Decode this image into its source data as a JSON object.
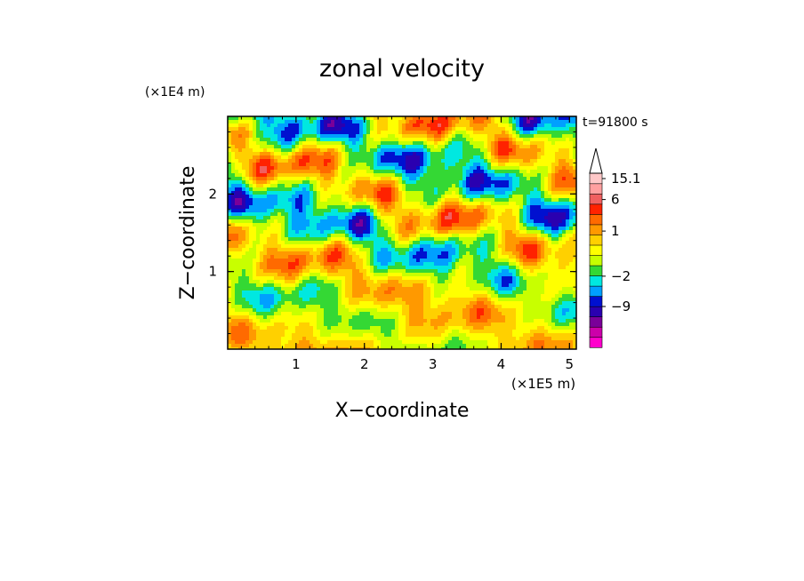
{
  "chart_data": {
    "type": "heatmap",
    "title": "zonal velocity",
    "time_label": "t=91800 s",
    "xlabel": "X−coordinate",
    "ylabel": "Z−coordinate",
    "x_unit_label": "(×1E5 m)",
    "y_unit_label": "(×1E4 m)",
    "xlim": [
      0,
      5.1
    ],
    "ylim": [
      0,
      3.0
    ],
    "x_ticks": [
      "1",
      "2",
      "3",
      "4",
      "5"
    ],
    "y_ticks": [
      "1",
      "2"
    ],
    "colorbar": {
      "labels": [
        {
          "text": "15.1",
          "level": 15.1
        },
        {
          "text": "6",
          "level": 6
        },
        {
          "text": "1",
          "level": 1
        },
        {
          "text": "−2",
          "level": -2
        },
        {
          "text": "−9",
          "level": -9
        }
      ],
      "colors": [
        "#ff00cc",
        "#cc00aa",
        "#7a0099",
        "#2a00b0",
        "#0010d0",
        "#00a0ff",
        "#00e8e0",
        "#34d834",
        "#c8ff00",
        "#ffff00",
        "#ffd000",
        "#ff9900",
        "#ff6a00",
        "#ff2200",
        "#f06060",
        "#ffa0a0",
        "#ffc8c8"
      ],
      "extend_max": true
    },
    "grid": false
  }
}
